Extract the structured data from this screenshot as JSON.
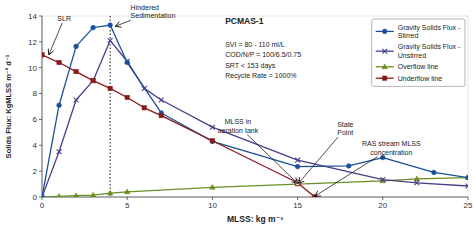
{
  "chart_data": {
    "type": "line",
    "title": "PCMAS-1",
    "x_label": "MLSS: kg m⁻³",
    "y_label": "Solids Flux: KgMLSS m⁻² d⁻¹",
    "xlim": [
      0,
      25
    ],
    "ylim": [
      0,
      14
    ],
    "xticks": [
      0,
      5,
      10,
      15,
      20,
      25
    ],
    "yticks": [
      0,
      2,
      4,
      6,
      8,
      10,
      12,
      14
    ],
    "grid": false,
    "legend": "upper right",
    "info_text": "SVI = 80 - 110 ml/L\nCOD/N/P = 100/6.5/0.75\nSRT < 153 days\nRecycle Rate = 1000%",
    "series": [
      {
        "name": "Gravity Solids Flux -\nStirred",
        "color": "#1a4f9c",
        "marker": "circle",
        "line_style": "solid",
        "x": [
          0,
          1,
          2,
          3,
          4,
          5,
          7,
          10,
          15,
          18,
          20,
          23,
          25
        ],
        "values": [
          0,
          7.1,
          11.65,
          13.1,
          13.3,
          10.4,
          6.5,
          4.3,
          2.35,
          2.4,
          3.05,
          1.9,
          1.5
        ]
      },
      {
        "name": "Gravity Solids Flux -\nUnstirred",
        "color": "#483d8b",
        "marker": "x",
        "line_style": "solid",
        "x": [
          0,
          1,
          2,
          3,
          4,
          5,
          6,
          7,
          10,
          15,
          20,
          22,
          25
        ],
        "values": [
          0,
          3.5,
          7.5,
          9.0,
          12.1,
          10.5,
          8.4,
          7.5,
          5.4,
          2.85,
          1.35,
          1.1,
          0.85
        ]
      },
      {
        "name": "Overflow line",
        "color": "#6b8e23",
        "marker": "triangle",
        "line_style": "solid",
        "x": [
          0,
          1,
          2,
          3,
          4,
          5,
          10,
          15,
          20,
          22,
          25
        ],
        "values": [
          0,
          0.05,
          0.1,
          0.15,
          0.3,
          0.4,
          0.75,
          1.0,
          1.25,
          1.4,
          1.5
        ]
      },
      {
        "name": "Underflow line",
        "color": "#8b1a1a",
        "marker": "square",
        "line_style": "solid",
        "x": [
          0,
          1,
          2,
          3,
          4,
          5,
          6,
          7,
          10,
          15,
          16
        ],
        "values": [
          11.0,
          10.4,
          9.7,
          9.0,
          8.4,
          7.7,
          6.9,
          6.3,
          4.35,
          1.1,
          0.0
        ]
      }
    ],
    "state_point": {
      "x": 15,
      "y": 1.1,
      "color": "#8b1a1a"
    },
    "vertical_line": 4.0,
    "annotations": [
      {
        "text": "SLR",
        "x": 0.4,
        "y": 11.0,
        "text_x": 1.3,
        "text_y": 13.5
      },
      {
        "text": "Hindered\nSedimentation",
        "x": 4.3,
        "y": 13.2,
        "text_x": 5.2,
        "text_y": 13.7
      },
      {
        "text": "MLSS in\naeration tank",
        "x": 15.0,
        "y": 1.05,
        "text_x": 11.5,
        "text_y": 5.5
      },
      {
        "text": "State\nPoint",
        "x": 15.05,
        "y": 1.05,
        "text_x": 17.8,
        "text_y": 5.3
      },
      {
        "text": "RAS stream MLSS\nconcentration",
        "x": 16.0,
        "y": 0.05,
        "text_x": 20.5,
        "text_y": 3.8
      }
    ]
  }
}
